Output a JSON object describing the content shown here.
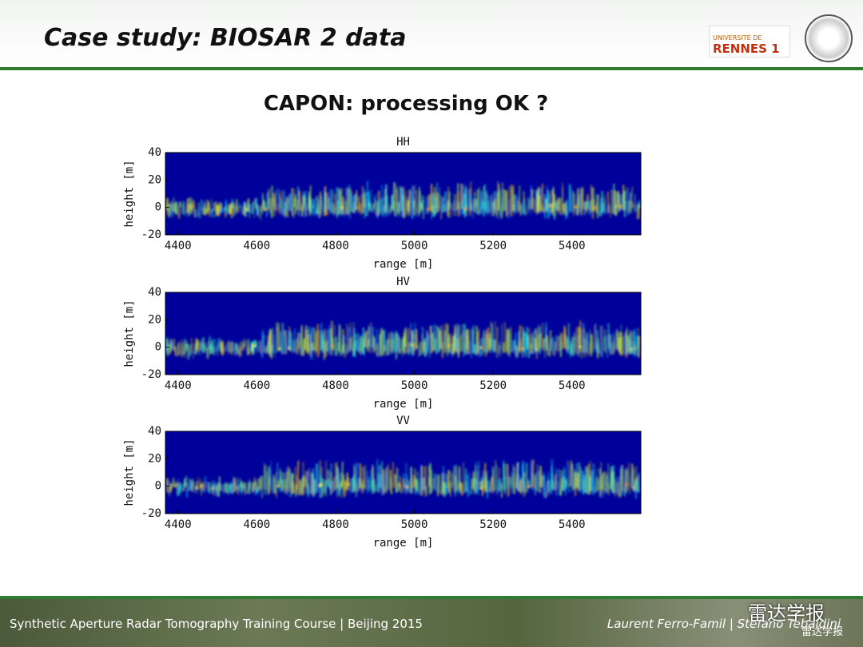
{
  "header": {
    "title": "Case study: BIOSAR 2 data",
    "logo_text_1": "UNIVERSITÉ DE",
    "logo_text_2": "RENNES 1"
  },
  "heading": "CAPON: processing OK ?",
  "chart_data": [
    {
      "type": "heatmap",
      "title": "HH",
      "xlabel": "range [m]",
      "ylabel": "height [m]",
      "xlim": [
        4368,
        5575
      ],
      "xticks": [
        4400,
        4600,
        4800,
        5000,
        5200,
        5400
      ],
      "ylim": [
        -20,
        40
      ],
      "yticks": [
        -20,
        0,
        20,
        40
      ]
    },
    {
      "type": "heatmap",
      "title": "HV",
      "xlabel": "range [m]",
      "ylabel": "height [m]",
      "xlim": [
        4368,
        5575
      ],
      "xticks": [
        4400,
        4600,
        4800,
        5000,
        5200,
        5400
      ],
      "ylim": [
        -20,
        40
      ],
      "yticks": [
        -20,
        0,
        20,
        40
      ]
    },
    {
      "type": "heatmap",
      "title": "VV",
      "xlabel": "range [m]",
      "ylabel": "height [m]",
      "xlim": [
        4368,
        5575
      ],
      "xticks": [
        4400,
        4600,
        4800,
        5000,
        5200,
        5400
      ],
      "ylim": [
        -20,
        40
      ],
      "yticks": [
        -20,
        0,
        20,
        40
      ]
    }
  ],
  "footer": {
    "left": "Synthetic Aperture Radar Tomography Training Course | Beijing 2015",
    "right": "Laurent Ferro-Famil | Stefano Tebaldini",
    "watermark": "雷达学报",
    "watermark_small": "雷达学报"
  }
}
